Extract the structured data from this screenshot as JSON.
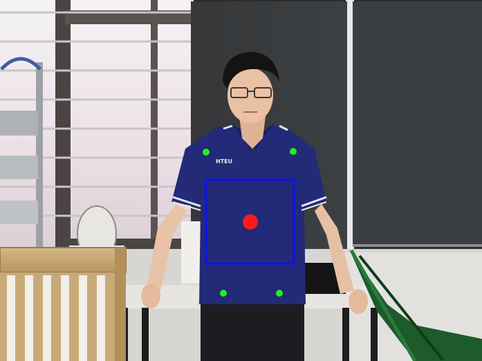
{
  "view": {
    "type": "webcam-pose-tracking-frame",
    "colors": {
      "bounding_box": "#0a12f0",
      "center_marker": "#ff1a1a",
      "keypoint": "#22ee22",
      "shirt": "#232a78",
      "blind": "#3a3d3f"
    }
  },
  "shirt": {
    "logo": "HTEU"
  },
  "tracking": {
    "box_label": "torso-bounding-box",
    "keypoints": [
      {
        "name": "left-shoulder-keypoint"
      },
      {
        "name": "right-shoulder-keypoint"
      },
      {
        "name": "left-hip-keypoint"
      },
      {
        "name": "right-hip-keypoint"
      }
    ],
    "center": {
      "name": "torso-center-marker"
    }
  }
}
